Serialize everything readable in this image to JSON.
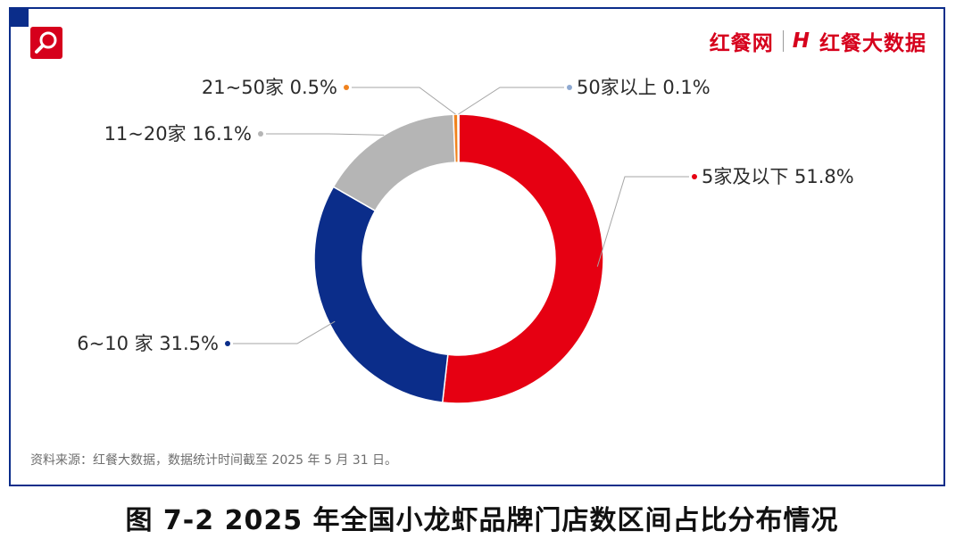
{
  "header": {
    "brand_primary": "红餐网",
    "brand_secondary_mark": "H",
    "brand_secondary": "红餐大数据"
  },
  "chart_data": {
    "type": "donut",
    "title": "2025 年全国小龙虾品牌门店数区间占比分布情况",
    "figure_label": "图 7-2",
    "unit": "%",
    "slices": [
      {
        "name": "5家及以下",
        "value": 51.8,
        "label": "5家及以下  51.8%",
        "color": "#e60012"
      },
      {
        "name": "6~10 家",
        "value": 31.5,
        "label": "6~10 家  31.5%",
        "color": "#0b2d8a"
      },
      {
        "name": "11~20家",
        "value": 16.1,
        "label": "11~20家  16.1%",
        "color": "#b5b5b5"
      },
      {
        "name": "21~50家",
        "value": 0.5,
        "label": "21~50家  0.5%",
        "color": "#f0821e"
      },
      {
        "name": "50家以上",
        "value": 0.1,
        "label": "50家以上  0.1%",
        "color": "#8ea9d1"
      }
    ]
  },
  "footer": {
    "source": "资料来源：红餐大数据，数据统计时间截至 2025 年 5 月 31 日。",
    "caption": "图 7-2    2025 年全国小龙虾品牌门店数区间占比分布情况"
  }
}
